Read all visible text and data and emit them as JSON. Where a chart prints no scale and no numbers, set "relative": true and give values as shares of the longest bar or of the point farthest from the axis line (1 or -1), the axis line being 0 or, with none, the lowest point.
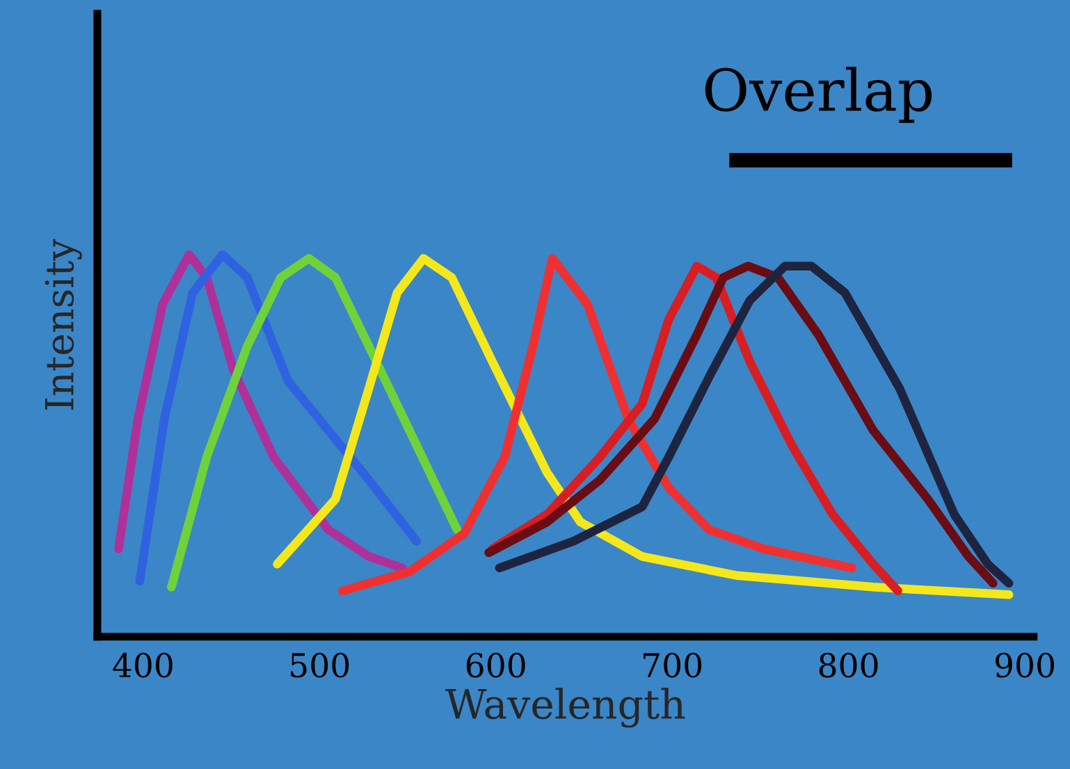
{
  "chart_data": {
    "type": "line",
    "relative": true,
    "xlabel": "Wavelength",
    "ylabel": "Intensity",
    "annotations": [
      "Overlap"
    ],
    "xlim": [
      374,
      905
    ],
    "xticks": [
      400,
      500,
      600,
      700,
      800,
      900
    ],
    "grid": false,
    "marker": "none",
    "line_style": "solid",
    "tick_labels": "x",
    "series": [
      {
        "color": "#b0309a",
        "x": [
          386,
          397,
          411,
          426,
          436,
          451,
          474,
          505,
          528,
          547
        ],
        "values": [
          0.23,
          0.57,
          0.87,
          1.0,
          0.94,
          0.7,
          0.47,
          0.28,
          0.21,
          0.18
        ]
      },
      {
        "color": "#2f62e0",
        "x": [
          398,
          412,
          428,
          445,
          459,
          482,
          505,
          528,
          555
        ],
        "values": [
          0.145,
          0.57,
          0.9,
          1.0,
          0.94,
          0.67,
          0.54,
          0.41,
          0.25
        ]
      },
      {
        "color": "#6fd23a",
        "x": [
          416,
          436,
          459,
          478,
          494,
          509,
          528,
          551,
          578
        ],
        "values": [
          0.13,
          0.47,
          0.76,
          0.94,
          0.99,
          0.94,
          0.76,
          0.54,
          0.28
        ]
      },
      {
        "color": "#f4e81c",
        "x": [
          476,
          509,
          528,
          544,
          559,
          575,
          598,
          629,
          648,
          683,
          737,
          814,
          891
        ],
        "values": [
          0.19,
          0.36,
          0.65,
          0.9,
          0.99,
          0.94,
          0.72,
          0.43,
          0.3,
          0.21,
          0.16,
          0.13,
          0.11
        ]
      },
      {
        "color": "#f03030",
        "x": [
          513,
          551,
          582,
          605,
          621,
          632,
          652,
          675,
          698,
          721,
          752,
          802
        ],
        "values": [
          0.12,
          0.17,
          0.27,
          0.47,
          0.76,
          0.99,
          0.87,
          0.57,
          0.39,
          0.28,
          0.23,
          0.18
        ]
      },
      {
        "color": "#d81e22",
        "x": [
          598,
          629,
          659,
          683,
          698,
          714,
          725,
          744,
          768,
          791,
          814,
          828
        ],
        "values": [
          0.23,
          0.32,
          0.47,
          0.61,
          0.83,
          0.97,
          0.94,
          0.72,
          0.5,
          0.32,
          0.19,
          0.12
        ]
      },
      {
        "color": "#6a0c14",
        "x": [
          596,
          629,
          659,
          690,
          714,
          729,
          743,
          760,
          783,
          814,
          845,
          868,
          882
        ],
        "values": [
          0.22,
          0.3,
          0.41,
          0.57,
          0.79,
          0.94,
          0.97,
          0.94,
          0.79,
          0.54,
          0.36,
          0.21,
          0.14
        ]
      },
      {
        "color": "#1e2440",
        "x": [
          602,
          644,
          683,
          698,
          721,
          744,
          764,
          779,
          798,
          829,
          860,
          879,
          891
        ],
        "values": [
          0.18,
          0.25,
          0.34,
          0.47,
          0.68,
          0.88,
          0.97,
          0.97,
          0.9,
          0.65,
          0.32,
          0.19,
          0.14
        ]
      }
    ]
  }
}
